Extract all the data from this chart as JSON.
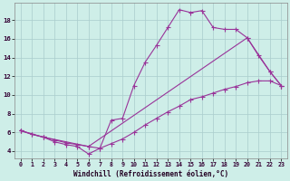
{
  "xlabel": "Windchill (Refroidissement éolien,°C)",
  "background_color": "#ceeee8",
  "grid_color": "#aacccc",
  "line_color": "#993399",
  "xlim": [
    -0.5,
    23.5
  ],
  "ylim": [
    3.2,
    19.8
  ],
  "xticks": [
    0,
    1,
    2,
    3,
    4,
    5,
    6,
    7,
    8,
    9,
    10,
    11,
    12,
    13,
    14,
    15,
    16,
    17,
    18,
    19,
    20,
    21,
    22,
    23
  ],
  "yticks": [
    4,
    6,
    8,
    10,
    12,
    14,
    16,
    18
  ],
  "line1_x": [
    0,
    1,
    2,
    3,
    4,
    5,
    6,
    7,
    8,
    9,
    10,
    11,
    12,
    13,
    14,
    15,
    16,
    17,
    18,
    19,
    20,
    21,
    22,
    23
  ],
  "line1_y": [
    6.2,
    5.8,
    5.5,
    5.0,
    4.7,
    4.5,
    3.7,
    4.3,
    7.3,
    7.5,
    11.0,
    13.5,
    15.3,
    17.2,
    19.1,
    18.8,
    19.0,
    17.2,
    17.0,
    17.0,
    16.1,
    14.2,
    12.5,
    11.0
  ],
  "line2_x": [
    0,
    1,
    2,
    3,
    4,
    5,
    6,
    7,
    8,
    9,
    10,
    11,
    12,
    13,
    14,
    15,
    16,
    17,
    18,
    19,
    20,
    21,
    22,
    23
  ],
  "line2_y": [
    6.2,
    5.8,
    5.5,
    5.2,
    4.9,
    4.7,
    4.5,
    4.3,
    4.8,
    5.3,
    6.0,
    6.8,
    7.5,
    8.2,
    8.8,
    9.5,
    9.8,
    10.2,
    10.6,
    10.9,
    11.3,
    11.5,
    11.5,
    11.0
  ],
  "line3_x": [
    0,
    2,
    6,
    20,
    22,
    23
  ],
  "line3_y": [
    6.2,
    5.5,
    4.5,
    16.1,
    12.5,
    11.0
  ]
}
